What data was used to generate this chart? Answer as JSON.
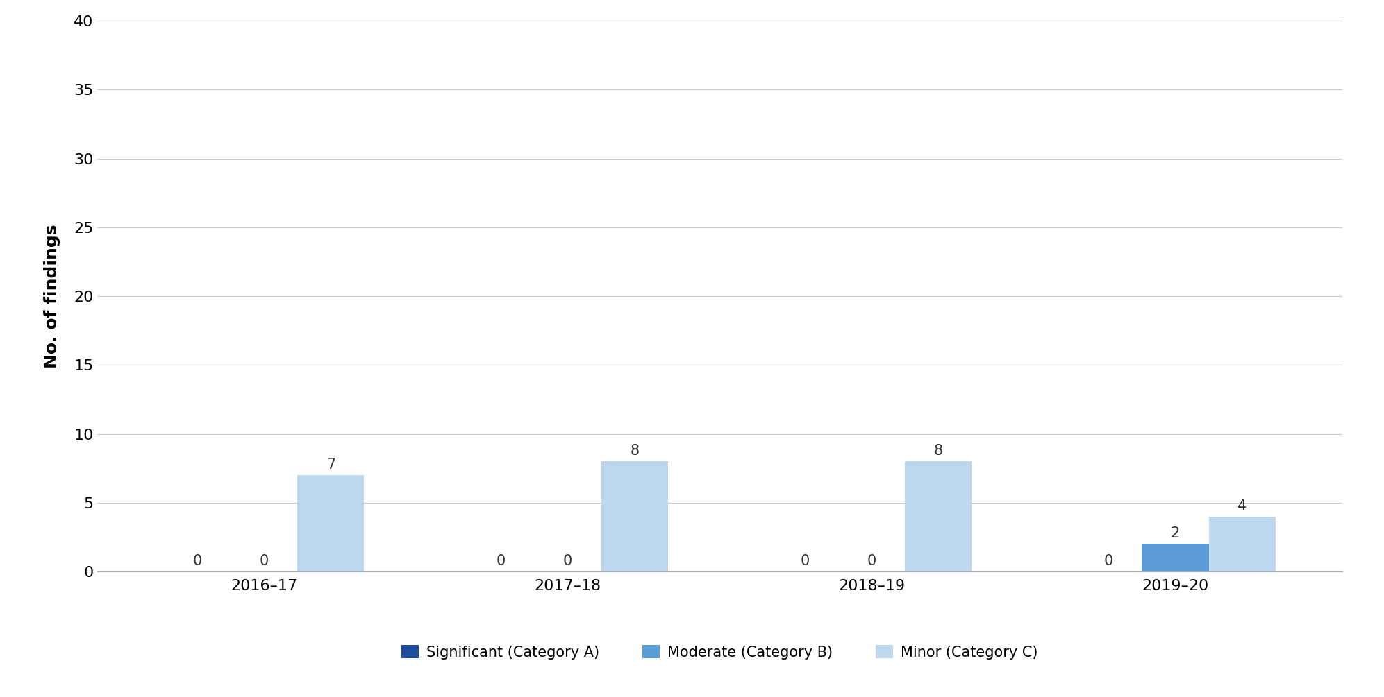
{
  "categories": [
    "2016–17",
    "2017–18",
    "2018–19",
    "2019–20"
  ],
  "series": {
    "Significant (Category A)": [
      0,
      0,
      0,
      0
    ],
    "Moderate (Category B)": [
      0,
      0,
      0,
      2
    ],
    "Minor (Category C)": [
      7,
      8,
      8,
      4
    ]
  },
  "colors": {
    "Significant (Category A)": "#1f4e9c",
    "Moderate (Category B)": "#5b9bd5",
    "Minor (Category C)": "#bdd7ee"
  },
  "ylabel": "No. of findings",
  "ylim": [
    0,
    40
  ],
  "yticks": [
    0,
    5,
    10,
    15,
    20,
    25,
    30,
    35,
    40
  ],
  "bar_width": 0.22,
  "background_color": "#ffffff",
  "grid_color": "#cccccc",
  "label_fontsize": 18,
  "tick_fontsize": 16,
  "legend_fontsize": 15,
  "annotation_fontsize": 15
}
